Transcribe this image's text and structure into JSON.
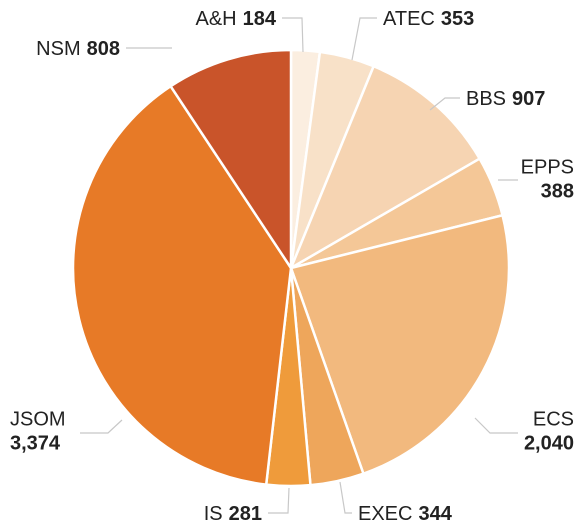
{
  "chart_data": {
    "type": "pie",
    "categories": [
      "A&H",
      "ATEC",
      "BBS",
      "EPPS",
      "ECS",
      "EXEC",
      "IS",
      "JSOM",
      "NSM"
    ],
    "values": [
      184,
      353,
      907,
      388,
      2040,
      344,
      281,
      3374,
      808
    ],
    "value_labels": [
      "184",
      "353",
      "907",
      "388",
      "2,040",
      "344",
      "281",
      "3,374",
      "808"
    ],
    "colors": [
      "#fbeee0",
      "#f8e1c8",
      "#f6d4b2",
      "#f4c797",
      "#f2b97e",
      "#eea65b",
      "#ef9b3b",
      "#e77a27",
      "#c9542a"
    ]
  }
}
